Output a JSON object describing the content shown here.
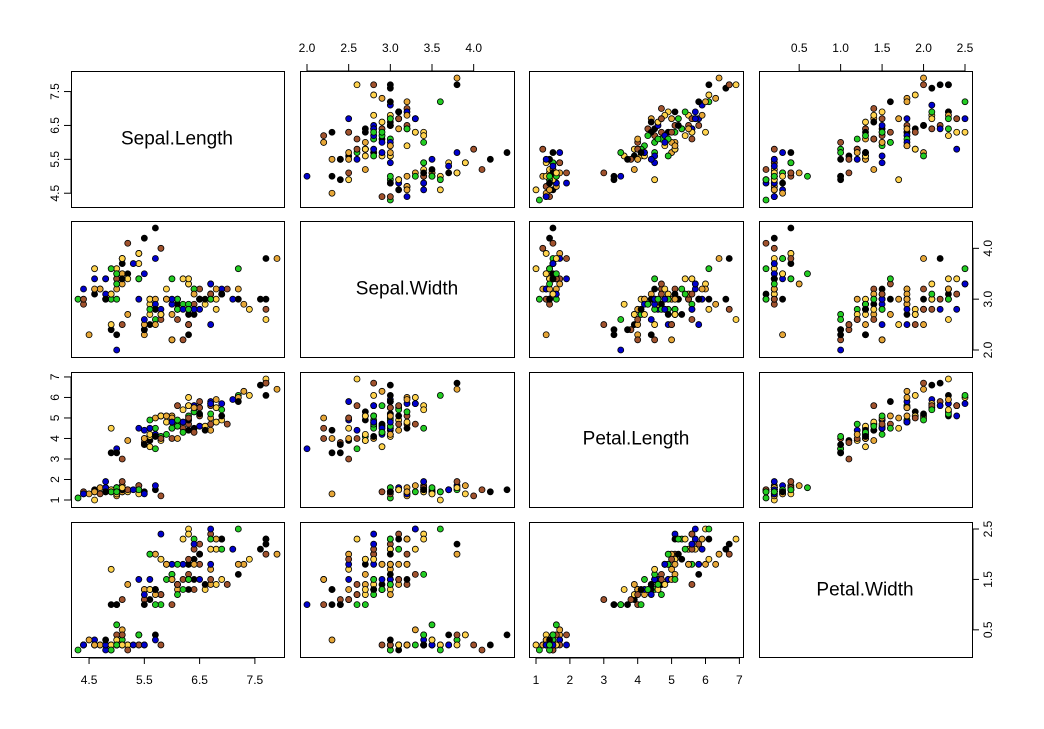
{
  "chart_data": {
    "type": "scatter",
    "title": "",
    "grid": false,
    "matrix_type": "scatterplot-matrix",
    "variables": [
      {
        "name": "Sepal.Length",
        "range": [
          4.3,
          7.9
        ],
        "tick_values": [
          4.5,
          5.5,
          6.5,
          7.5
        ],
        "tick_labels": [
          "4.5",
          "5.5",
          "6.5",
          "7.5"
        ],
        "odd_values": [
          4.5,
          5.5,
          6.5,
          7.5
        ],
        "odd_labels": [
          "4.5",
          "5.5",
          "6.5",
          "7.5"
        ]
      },
      {
        "name": "Sepal.Width",
        "range": [
          2.0,
          4.4
        ],
        "tick_values": [
          2.0,
          2.5,
          3.0,
          3.5,
          4.0
        ],
        "tick_labels": [
          "2.0",
          "2.5",
          "3.0",
          "3.5",
          "4.0"
        ],
        "odd_values": [
          2.0,
          3.0,
          4.0
        ],
        "odd_labels": [
          "2.0",
          "3.0",
          "4.0"
        ]
      },
      {
        "name": "Petal.Length",
        "range": [
          1.0,
          6.9
        ],
        "tick_values": [
          1,
          2,
          3,
          4,
          5,
          6,
          7
        ],
        "tick_labels": [
          "1",
          "2",
          "3",
          "4",
          "5",
          "6",
          "7"
        ],
        "odd_values": [
          1,
          2,
          3,
          4,
          5,
          6,
          7
        ],
        "odd_labels": [
          "1",
          "2",
          "3",
          "4",
          "5",
          "6",
          "7"
        ]
      },
      {
        "name": "Petal.Width",
        "range": [
          0.1,
          2.5
        ],
        "tick_values": [
          0.5,
          1.0,
          1.5,
          2.0,
          2.5
        ],
        "tick_labels": [
          "0.5",
          "1.0",
          "1.5",
          "2.0",
          "2.5"
        ],
        "odd_values": [
          0.5,
          1.5,
          2.5
        ],
        "odd_labels": [
          "0.5",
          "1.5",
          "2.5"
        ]
      }
    ],
    "point_colors": [
      "#0000cd",
      "#22cc22",
      "#a0522d",
      "#000000",
      "#ffd34d",
      "#e6a637"
    ],
    "rows": [
      [
        5.1,
        3.5,
        1.4,
        0.2
      ],
      [
        4.9,
        3.0,
        1.4,
        0.2
      ],
      [
        4.7,
        3.2,
        1.3,
        0.2
      ],
      [
        4.6,
        3.1,
        1.5,
        0.2
      ],
      [
        5.0,
        3.6,
        1.4,
        0.2
      ],
      [
        5.4,
        3.9,
        1.7,
        0.4
      ],
      [
        4.6,
        3.4,
        1.4,
        0.3
      ],
      [
        5.0,
        3.4,
        1.5,
        0.2
      ],
      [
        4.4,
        2.9,
        1.4,
        0.2
      ],
      [
        4.9,
        3.1,
        1.5,
        0.1
      ],
      [
        5.4,
        3.7,
        1.5,
        0.2
      ],
      [
        4.8,
        3.4,
        1.6,
        0.2
      ],
      [
        4.8,
        3.0,
        1.4,
        0.1
      ],
      [
        4.3,
        3.0,
        1.1,
        0.1
      ],
      [
        5.8,
        4.0,
        1.2,
        0.2
      ],
      [
        5.7,
        4.4,
        1.5,
        0.4
      ],
      [
        5.4,
        3.9,
        1.3,
        0.4
      ],
      [
        5.1,
        3.5,
        1.4,
        0.3
      ],
      [
        5.7,
        3.8,
        1.7,
        0.3
      ],
      [
        5.1,
        3.8,
        1.5,
        0.3
      ],
      [
        5.4,
        3.4,
        1.7,
        0.2
      ],
      [
        5.1,
        3.7,
        1.5,
        0.4
      ],
      [
        4.6,
        3.6,
        1.0,
        0.2
      ],
      [
        5.1,
        3.3,
        1.7,
        0.5
      ],
      [
        4.8,
        3.4,
        1.9,
        0.2
      ],
      [
        5.0,
        3.0,
        1.6,
        0.2
      ],
      [
        5.0,
        3.4,
        1.6,
        0.4
      ],
      [
        5.2,
        3.5,
        1.5,
        0.2
      ],
      [
        5.2,
        3.4,
        1.4,
        0.2
      ],
      [
        4.7,
        3.2,
        1.6,
        0.2
      ],
      [
        4.8,
        3.1,
        1.6,
        0.2
      ],
      [
        5.4,
        3.4,
        1.5,
        0.4
      ],
      [
        5.2,
        4.1,
        1.5,
        0.1
      ],
      [
        5.5,
        4.2,
        1.4,
        0.2
      ],
      [
        4.9,
        3.1,
        1.5,
        0.2
      ],
      [
        5.0,
        3.2,
        1.2,
        0.2
      ],
      [
        5.5,
        3.5,
        1.3,
        0.2
      ],
      [
        4.9,
        3.6,
        1.4,
        0.1
      ],
      [
        4.4,
        3.0,
        1.3,
        0.2
      ],
      [
        5.1,
        3.4,
        1.5,
        0.2
      ],
      [
        5.0,
        3.5,
        1.3,
        0.3
      ],
      [
        4.5,
        2.3,
        1.3,
        0.3
      ],
      [
        4.4,
        3.2,
        1.3,
        0.2
      ],
      [
        5.0,
        3.5,
        1.6,
        0.6
      ],
      [
        5.1,
        3.8,
        1.9,
        0.4
      ],
      [
        4.8,
        3.0,
        1.4,
        0.3
      ],
      [
        5.1,
        3.8,
        1.6,
        0.2
      ],
      [
        4.6,
        3.2,
        1.4,
        0.2
      ],
      [
        5.3,
        3.7,
        1.5,
        0.2
      ],
      [
        5.0,
        3.3,
        1.4,
        0.2
      ],
      [
        7.0,
        3.2,
        4.7,
        1.4
      ],
      [
        6.4,
        3.2,
        4.5,
        1.5
      ],
      [
        6.9,
        3.1,
        4.9,
        1.5
      ],
      [
        5.5,
        2.3,
        4.0,
        1.3
      ],
      [
        6.5,
        2.8,
        4.6,
        1.5
      ],
      [
        5.7,
        2.8,
        4.5,
        1.3
      ],
      [
        6.3,
        3.3,
        4.7,
        1.6
      ],
      [
        4.9,
        2.4,
        3.3,
        1.0
      ],
      [
        6.6,
        2.9,
        4.6,
        1.3
      ],
      [
        5.2,
        2.7,
        3.9,
        1.4
      ],
      [
        5.0,
        2.0,
        3.5,
        1.0
      ],
      [
        5.9,
        3.0,
        4.2,
        1.5
      ],
      [
        6.0,
        2.2,
        4.0,
        1.0
      ],
      [
        6.1,
        2.9,
        4.7,
        1.4
      ],
      [
        5.6,
        2.9,
        3.6,
        1.3
      ],
      [
        6.7,
        3.1,
        4.4,
        1.4
      ],
      [
        5.6,
        3.0,
        4.5,
        1.5
      ],
      [
        5.8,
        2.7,
        4.1,
        1.0
      ],
      [
        6.2,
        2.2,
        4.5,
        1.5
      ],
      [
        5.6,
        2.5,
        3.9,
        1.1
      ],
      [
        5.9,
        3.2,
        4.8,
        1.8
      ],
      [
        6.1,
        2.8,
        4.0,
        1.3
      ],
      [
        6.3,
        2.5,
        4.9,
        1.5
      ],
      [
        6.1,
        2.8,
        4.7,
        1.2
      ],
      [
        6.4,
        2.9,
        4.3,
        1.3
      ],
      [
        6.6,
        3.0,
        4.4,
        1.4
      ],
      [
        6.8,
        2.8,
        4.8,
        1.4
      ],
      [
        6.7,
        3.0,
        5.0,
        1.7
      ],
      [
        6.0,
        2.9,
        4.5,
        1.5
      ],
      [
        5.7,
        2.6,
        3.5,
        1.0
      ],
      [
        5.5,
        2.4,
        3.8,
        1.1
      ],
      [
        5.5,
        2.4,
        3.7,
        1.0
      ],
      [
        5.8,
        2.7,
        3.9,
        1.2
      ],
      [
        6.0,
        2.7,
        5.1,
        1.6
      ],
      [
        5.4,
        3.0,
        4.5,
        1.5
      ],
      [
        6.0,
        3.4,
        4.5,
        1.6
      ],
      [
        6.7,
        3.1,
        4.7,
        1.5
      ],
      [
        6.3,
        2.3,
        4.4,
        1.3
      ],
      [
        5.6,
        3.0,
        4.1,
        1.3
      ],
      [
        5.5,
        2.5,
        4.0,
        1.3
      ],
      [
        5.5,
        2.6,
        4.4,
        1.2
      ],
      [
        6.1,
        3.0,
        4.6,
        1.4
      ],
      [
        5.8,
        2.6,
        4.0,
        1.2
      ],
      [
        5.0,
        2.3,
        3.3,
        1.0
      ],
      [
        5.6,
        2.7,
        4.2,
        1.3
      ],
      [
        5.7,
        3.0,
        4.2,
        1.2
      ],
      [
        5.7,
        2.9,
        4.2,
        1.3
      ],
      [
        6.2,
        2.9,
        4.3,
        1.3
      ],
      [
        5.1,
        2.5,
        3.0,
        1.1
      ],
      [
        5.7,
        2.8,
        4.1,
        1.3
      ],
      [
        6.3,
        3.3,
        6.0,
        2.5
      ],
      [
        5.8,
        2.7,
        5.1,
        1.9
      ],
      [
        7.1,
        3.0,
        5.9,
        2.1
      ],
      [
        6.3,
        2.9,
        5.6,
        1.8
      ],
      [
        6.5,
        3.0,
        5.8,
        2.2
      ],
      [
        7.6,
        3.0,
        6.6,
        2.1
      ],
      [
        4.9,
        2.5,
        4.5,
        1.7
      ],
      [
        7.3,
        2.9,
        6.3,
        1.8
      ],
      [
        6.7,
        2.5,
        5.8,
        1.8
      ],
      [
        7.2,
        3.6,
        6.1,
        2.5
      ],
      [
        6.5,
        3.2,
        5.1,
        2.0
      ],
      [
        6.4,
        2.7,
        5.3,
        1.9
      ],
      [
        6.8,
        3.0,
        5.5,
        2.1
      ],
      [
        5.7,
        2.5,
        5.0,
        2.0
      ],
      [
        5.8,
        2.8,
        5.1,
        2.4
      ],
      [
        6.4,
        3.2,
        5.3,
        2.3
      ],
      [
        6.5,
        3.0,
        5.5,
        1.8
      ],
      [
        7.7,
        3.8,
        6.7,
        2.2
      ],
      [
        7.7,
        2.6,
        6.9,
        2.3
      ],
      [
        6.0,
        2.2,
        5.0,
        1.5
      ],
      [
        6.9,
        3.2,
        5.7,
        2.3
      ],
      [
        5.6,
        2.8,
        4.9,
        2.0
      ],
      [
        7.7,
        2.8,
        6.7,
        2.0
      ],
      [
        6.3,
        2.7,
        4.9,
        1.8
      ],
      [
        6.7,
        3.3,
        5.7,
        2.1
      ],
      [
        7.2,
        3.2,
        6.0,
        1.8
      ],
      [
        6.2,
        2.8,
        4.8,
        1.8
      ],
      [
        6.1,
        3.0,
        4.9,
        1.8
      ],
      [
        6.4,
        2.8,
        5.6,
        2.1
      ],
      [
        7.2,
        3.0,
        5.8,
        1.6
      ],
      [
        7.4,
        2.8,
        6.1,
        1.9
      ],
      [
        7.9,
        3.8,
        6.4,
        2.0
      ],
      [
        6.4,
        2.8,
        5.6,
        2.2
      ],
      [
        6.3,
        2.8,
        5.1,
        1.5
      ],
      [
        6.1,
        2.6,
        5.6,
        1.4
      ],
      [
        7.7,
        3.0,
        6.1,
        2.3
      ],
      [
        6.3,
        3.4,
        5.6,
        2.4
      ],
      [
        6.4,
        3.1,
        5.5,
        1.8
      ],
      [
        6.0,
        3.0,
        4.8,
        1.8
      ],
      [
        6.9,
        3.1,
        5.4,
        2.1
      ],
      [
        6.7,
        3.1,
        5.6,
        2.4
      ],
      [
        6.9,
        3.1,
        5.1,
        2.3
      ],
      [
        5.8,
        2.7,
        5.1,
        1.9
      ],
      [
        6.8,
        3.2,
        5.9,
        2.3
      ],
      [
        6.7,
        3.3,
        5.7,
        2.5
      ],
      [
        6.7,
        3.0,
        5.2,
        2.3
      ],
      [
        6.3,
        2.5,
        5.0,
        1.9
      ],
      [
        6.5,
        3.0,
        5.2,
        2.0
      ],
      [
        6.2,
        3.4,
        5.4,
        2.3
      ],
      [
        5.9,
        3.0,
        5.1,
        1.8
      ]
    ]
  }
}
